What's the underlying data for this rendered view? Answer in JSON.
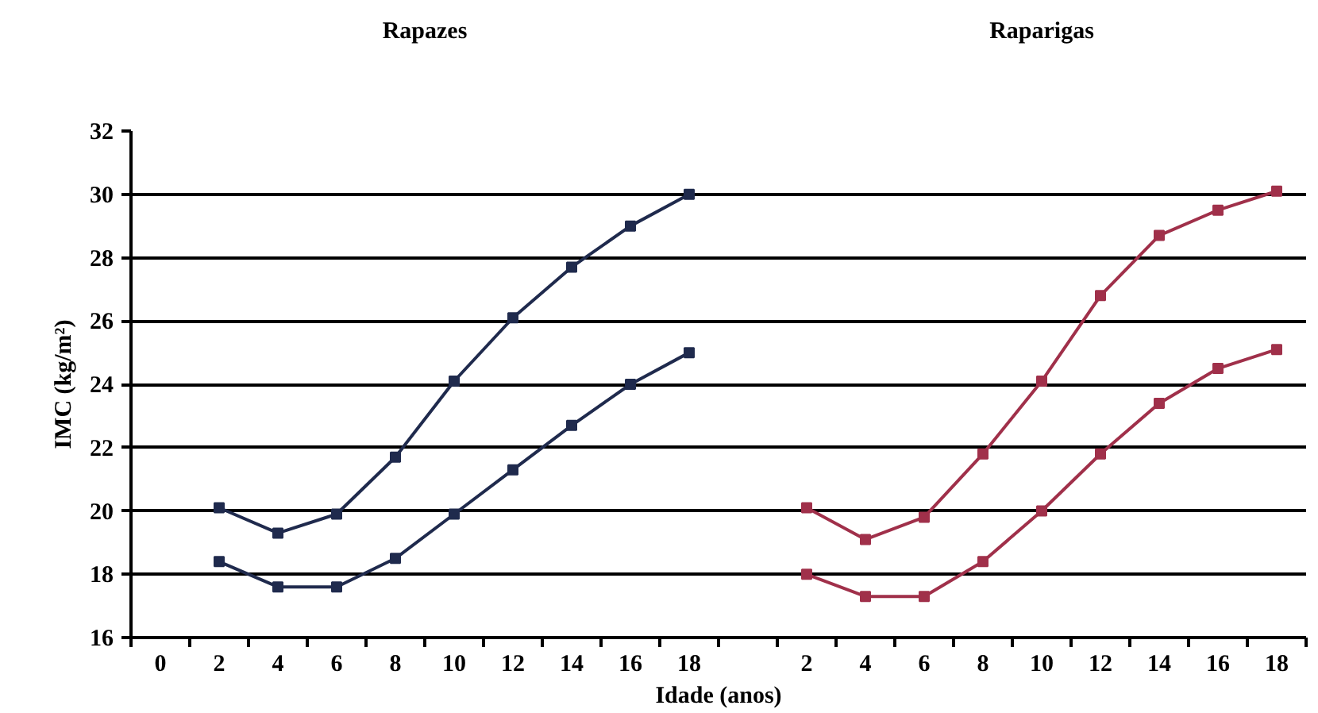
{
  "chart_data": {
    "type": "line",
    "annotations": [
      "Rapazes",
      "Raparigas"
    ],
    "xlabel": "Idade (anos)",
    "ylabel": "IMC (kg/m²)",
    "categories": [
      "0",
      "2",
      "4",
      "6",
      "8",
      "10",
      "12",
      "14",
      "16",
      "18",
      null,
      "2",
      "4",
      "6",
      "8",
      "10",
      "12",
      "14",
      "16",
      "18"
    ],
    "series": [
      {
        "color": "#1f2a4d",
        "values": [
          null,
          20.1,
          19.3,
          19.9,
          21.7,
          24.1,
          26.1,
          27.7,
          29.0,
          30.0,
          null,
          null,
          null,
          null,
          null,
          null,
          null,
          null,
          null,
          null
        ]
      },
      {
        "color": "#1f2a4d",
        "values": [
          null,
          18.4,
          17.6,
          17.6,
          18.5,
          19.9,
          21.3,
          22.7,
          24.0,
          25.0,
          null,
          null,
          null,
          null,
          null,
          null,
          null,
          null,
          null,
          null
        ]
      },
      {
        "color": "#a0304a",
        "values": [
          null,
          null,
          null,
          null,
          null,
          null,
          null,
          null,
          null,
          null,
          null,
          20.1,
          19.1,
          19.8,
          21.8,
          24.1,
          26.8,
          28.7,
          29.5,
          30.1
        ]
      },
      {
        "color": "#a0304a",
        "values": [
          null,
          null,
          null,
          null,
          null,
          null,
          null,
          null,
          null,
          null,
          null,
          18.0,
          17.3,
          17.3,
          18.4,
          20.0,
          21.8,
          23.4,
          24.5,
          25.1
        ]
      }
    ],
    "ylim": [
      16,
      32
    ],
    "yticks": [
      16,
      18,
      20,
      22,
      24,
      26,
      28,
      30,
      32
    ],
    "grid": "y",
    "marker": "square",
    "line_style": "solid"
  }
}
